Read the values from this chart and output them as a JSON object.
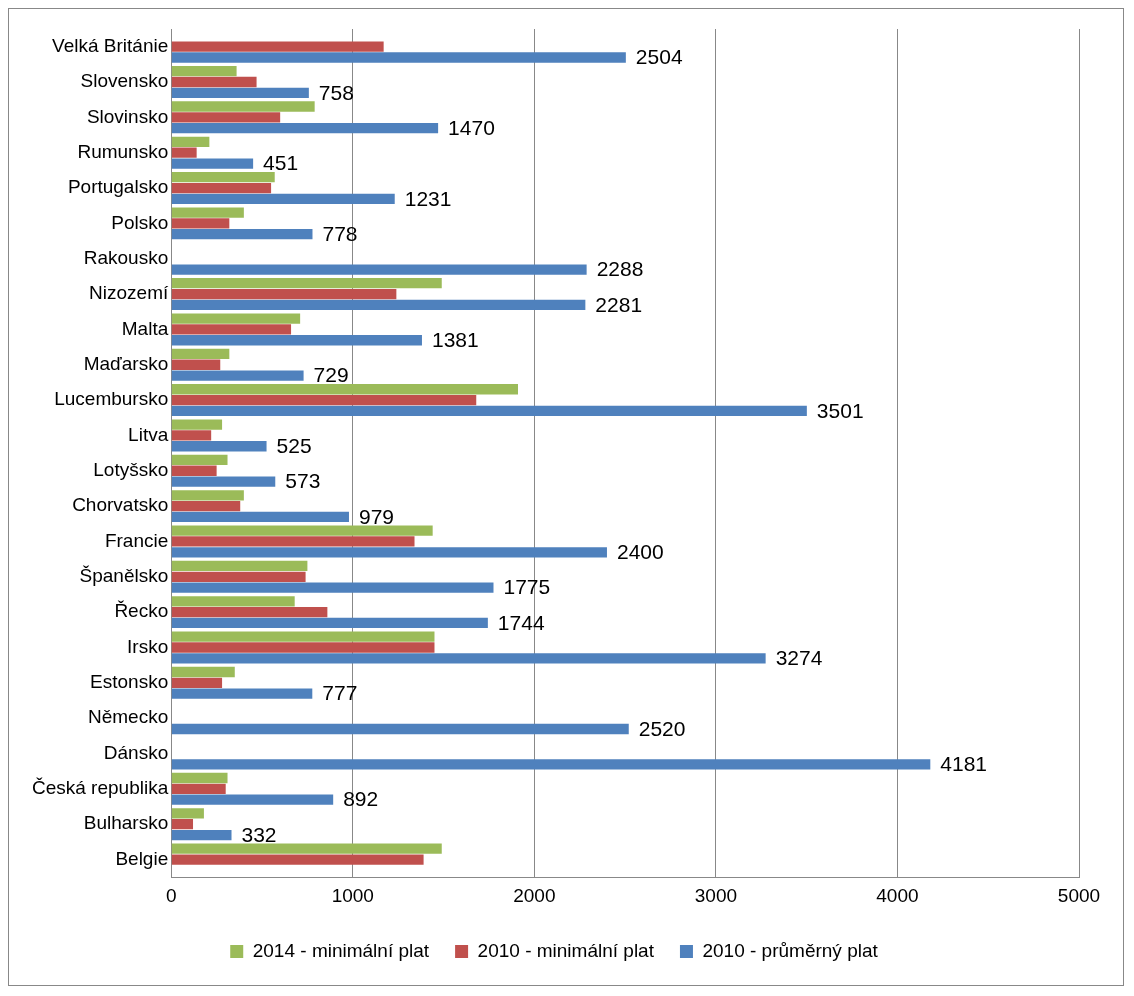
{
  "chart_data": {
    "type": "bar",
    "orientation": "horizontal",
    "categories": [
      "Velká Británie",
      "Slovensko",
      "Slovinsko",
      "Rumunsko",
      "Portugalsko",
      "Polsko",
      "Rakousko",
      "Nizozemí",
      "Malta",
      "Maďarsko",
      "Lucembursko",
      "Litva",
      "Lotyšsko",
      "Chorvatsko",
      "Francie",
      "Španělsko",
      "Řecko",
      "Irsko",
      "Estonsko",
      "Německo",
      "Dánsko",
      "Česká republika",
      "Bulharsko",
      "Belgie"
    ],
    "series": [
      {
        "name": "2014 - minimální plat",
        "color": "#9bbb59",
        "values": [
          null,
          360,
          790,
          210,
          570,
          400,
          null,
          1490,
          710,
          320,
          1910,
          280,
          310,
          400,
          1440,
          750,
          680,
          1450,
          350,
          null,
          null,
          310,
          180,
          1490
        ]
      },
      {
        "name": "2010 - minimální plat",
        "color": "#c0504d",
        "values": [
          1170,
          470,
          600,
          140,
          550,
          320,
          null,
          1240,
          660,
          270,
          1680,
          220,
          250,
          380,
          1340,
          740,
          860,
          1450,
          280,
          null,
          null,
          300,
          120,
          1390
        ]
      },
      {
        "name": "2010 - průměrný plat",
        "color": "#4f81bd",
        "values": [
          2504,
          758,
          1470,
          451,
          1231,
          778,
          2288,
          2281,
          1381,
          729,
          3501,
          525,
          573,
          979,
          2400,
          1775,
          1744,
          3274,
          777,
          2520,
          4181,
          892,
          332,
          null
        ],
        "value_labels": [
          "2504",
          "758",
          "1470",
          "451",
          "1231",
          "778",
          "2288",
          "2281",
          "1381",
          "729",
          "3501",
          "525",
          "573",
          "979",
          "2400",
          "1775",
          "1744",
          "3274",
          "777",
          "2520",
          "4181",
          "892",
          "332",
          null
        ]
      }
    ],
    "xlim": [
      0,
      5000
    ],
    "xticks": [
      0,
      1000,
      2000,
      3000,
      4000,
      5000
    ],
    "grid": "x",
    "legend": "bottom"
  }
}
